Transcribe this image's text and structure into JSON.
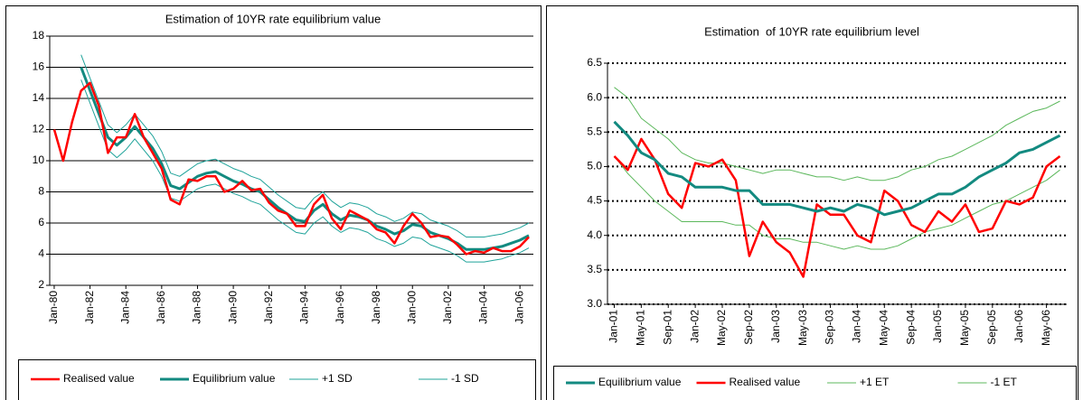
{
  "chart_data": [
    {
      "type": "line",
      "title": "Estimation of 10YR rate equilibrium value",
      "categories": [
        "Jan-80",
        null,
        null,
        null,
        "Jan-82",
        null,
        null,
        null,
        "Jan-84",
        null,
        null,
        null,
        "Jan-86",
        null,
        null,
        null,
        "Jan-88",
        null,
        null,
        null,
        "Jan-90",
        null,
        null,
        null,
        "Jan-92",
        null,
        null,
        null,
        "Jan-94",
        null,
        null,
        null,
        "Jan-96",
        null,
        null,
        null,
        "Jan-98",
        null,
        null,
        null,
        "Jan-00",
        null,
        null,
        null,
        "Jan-02",
        null,
        null,
        null,
        "Jan-04",
        null,
        null,
        null,
        "Jan-06",
        null
      ],
      "ylim": [
        2,
        18
      ],
      "yticks": [
        2,
        4,
        6,
        8,
        10,
        12,
        14,
        16,
        18
      ],
      "grid": "solid",
      "legend": "bottom",
      "series": [
        {
          "name": "Realised value",
          "color": "#ff0000",
          "values": [
            12,
            10,
            12.5,
            14.5,
            15,
            13.5,
            10.5,
            11.5,
            11.5,
            13,
            11.5,
            10.5,
            9.5,
            7.5,
            7.2,
            8.8,
            8.7,
            9,
            9,
            8,
            8.2,
            8.7,
            8.1,
            8.2,
            7.3,
            6.8,
            6.6,
            5.8,
            5.8,
            7.2,
            7.8,
            6.3,
            5.6,
            6.8,
            6.5,
            6.2,
            5.6,
            5.4,
            4.7,
            5.8,
            6.6,
            6,
            5.1,
            5.2,
            5.1,
            4.6,
            4,
            4.2,
            4.1,
            4.4,
            4.2,
            4.2,
            4.5,
            5.1
          ]
        },
        {
          "name": "Equilibrium value",
          "color": "#138a80",
          "values": [
            null,
            null,
            null,
            16,
            14.5,
            13,
            11.5,
            11,
            11.5,
            12.2,
            11.5,
            10.8,
            9.8,
            8.4,
            8.2,
            8.6,
            9,
            9.2,
            9.3,
            9,
            8.7,
            8.5,
            8.2,
            8,
            7.5,
            7,
            6.6,
            6.2,
            6.1,
            6.8,
            7.2,
            6.6,
            6.2,
            6.5,
            6.4,
            6.2,
            5.8,
            5.6,
            5.3,
            5.5,
            5.9,
            5.8,
            5.4,
            5.2,
            5,
            4.7,
            4.3,
            4.3,
            4.3,
            4.4,
            4.5,
            4.7,
            4.9,
            5.2
          ]
        },
        {
          "name": "+1 SD",
          "color": "#1fa39a",
          "values": [
            null,
            null,
            null,
            16.8,
            15.3,
            13.8,
            12.3,
            11.8,
            12.3,
            13,
            12.3,
            11.6,
            10.6,
            9.2,
            9,
            9.4,
            9.8,
            10,
            10.1,
            9.8,
            9.5,
            9.3,
            9,
            8.8,
            8.3,
            7.8,
            7.4,
            7,
            6.9,
            7.6,
            8,
            7.4,
            7,
            7.3,
            7.2,
            7,
            6.6,
            6.4,
            6.1,
            6.3,
            6.7,
            6.6,
            6.2,
            6,
            5.8,
            5.5,
            5.1,
            5.1,
            5.1,
            5.2,
            5.3,
            5.5,
            5.7,
            6
          ]
        },
        {
          "name": "-1 SD",
          "color": "#1fa39a",
          "values": [
            null,
            null,
            null,
            15.2,
            13.7,
            12.2,
            10.7,
            10.2,
            10.7,
            11.4,
            10.7,
            10,
            9,
            7.6,
            7.4,
            7.8,
            8.2,
            8.4,
            8.5,
            8.2,
            7.9,
            7.7,
            7.4,
            7.2,
            6.7,
            6.2,
            5.8,
            5.4,
            5.3,
            6,
            6.4,
            5.8,
            5.4,
            5.7,
            5.6,
            5.4,
            5,
            4.8,
            4.5,
            4.7,
            5.1,
            5,
            4.6,
            4.4,
            4.2,
            3.9,
            3.5,
            3.5,
            3.5,
            3.6,
            3.7,
            3.9,
            4.1,
            4.4
          ]
        }
      ]
    },
    {
      "type": "line",
      "title": "Estimation  of 10YR rate equilibrium level",
      "categories": [
        "Jan-01",
        null,
        "May-01",
        null,
        "Sep-01",
        null,
        "Jan-02",
        null,
        "May-02",
        null,
        "Sep-02",
        null,
        "Jan-03",
        null,
        "May-03",
        null,
        "Sep-03",
        null,
        "Jan-04",
        null,
        "May-04",
        null,
        "Sep-04",
        null,
        "Jan-05",
        null,
        "May-05",
        null,
        "Sep-05",
        null,
        "Jan-06",
        null,
        "May-06",
        null
      ],
      "ylim": [
        3.0,
        6.5
      ],
      "yticks": [
        {
          "value": 3.0,
          "label": "3.0"
        },
        3.5,
        {
          "value": 4.0,
          "label": "4.0"
        },
        4.5,
        {
          "value": 5.0,
          "label": "5.0"
        },
        5.5,
        {
          "value": 6.0,
          "label": "6.0"
        },
        6.5
      ],
      "grid": "dotted",
      "legend": "bottom",
      "series": [
        {
          "name": "Equilibrium value",
          "color": "#138a80",
          "values": [
            5.65,
            5.45,
            5.2,
            5.1,
            4.9,
            4.85,
            4.7,
            4.7,
            4.7,
            4.65,
            4.65,
            4.45,
            4.45,
            4.45,
            4.4,
            4.35,
            4.4,
            4.35,
            4.45,
            4.4,
            4.3,
            4.35,
            4.4,
            4.5,
            4.6,
            4.6,
            4.7,
            4.85,
            4.95,
            5.05,
            5.2,
            5.25,
            5.35,
            5.45
          ]
        },
        {
          "name": "Realised value",
          "color": "#ff0000",
          "values": [
            5.15,
            4.95,
            5.4,
            5.1,
            4.6,
            4.4,
            5.05,
            5.0,
            5.1,
            4.8,
            3.7,
            4.2,
            3.9,
            3.75,
            3.4,
            4.45,
            4.3,
            4.3,
            4.0,
            3.9,
            4.65,
            4.5,
            4.15,
            4.05,
            4.35,
            4.2,
            4.45,
            4.05,
            4.1,
            4.5,
            4.45,
            4.55,
            5.0,
            5.15
          ]
        },
        {
          "name": "+1 ET",
          "color": "#5cb85c",
          "values": [
            6.15,
            6.0,
            5.7,
            5.55,
            5.4,
            5.2,
            5.1,
            5.05,
            5.05,
            5.0,
            4.95,
            4.9,
            4.95,
            4.95,
            4.9,
            4.85,
            4.85,
            4.8,
            4.85,
            4.8,
            4.8,
            4.85,
            4.95,
            5.0,
            5.1,
            5.15,
            5.25,
            5.35,
            5.45,
            5.6,
            5.7,
            5.8,
            5.85,
            5.95
          ]
        },
        {
          "name": "-1 ET",
          "color": "#5cb85c",
          "values": [
            5.15,
            4.9,
            4.7,
            4.5,
            4.35,
            4.2,
            4.2,
            4.2,
            4.2,
            4.15,
            4.15,
            4.0,
            3.95,
            3.95,
            3.9,
            3.9,
            3.85,
            3.8,
            3.85,
            3.8,
            3.8,
            3.85,
            3.95,
            4.05,
            4.1,
            4.15,
            4.25,
            4.35,
            4.45,
            4.5,
            4.6,
            4.7,
            4.8,
            4.95
          ]
        }
      ]
    }
  ]
}
